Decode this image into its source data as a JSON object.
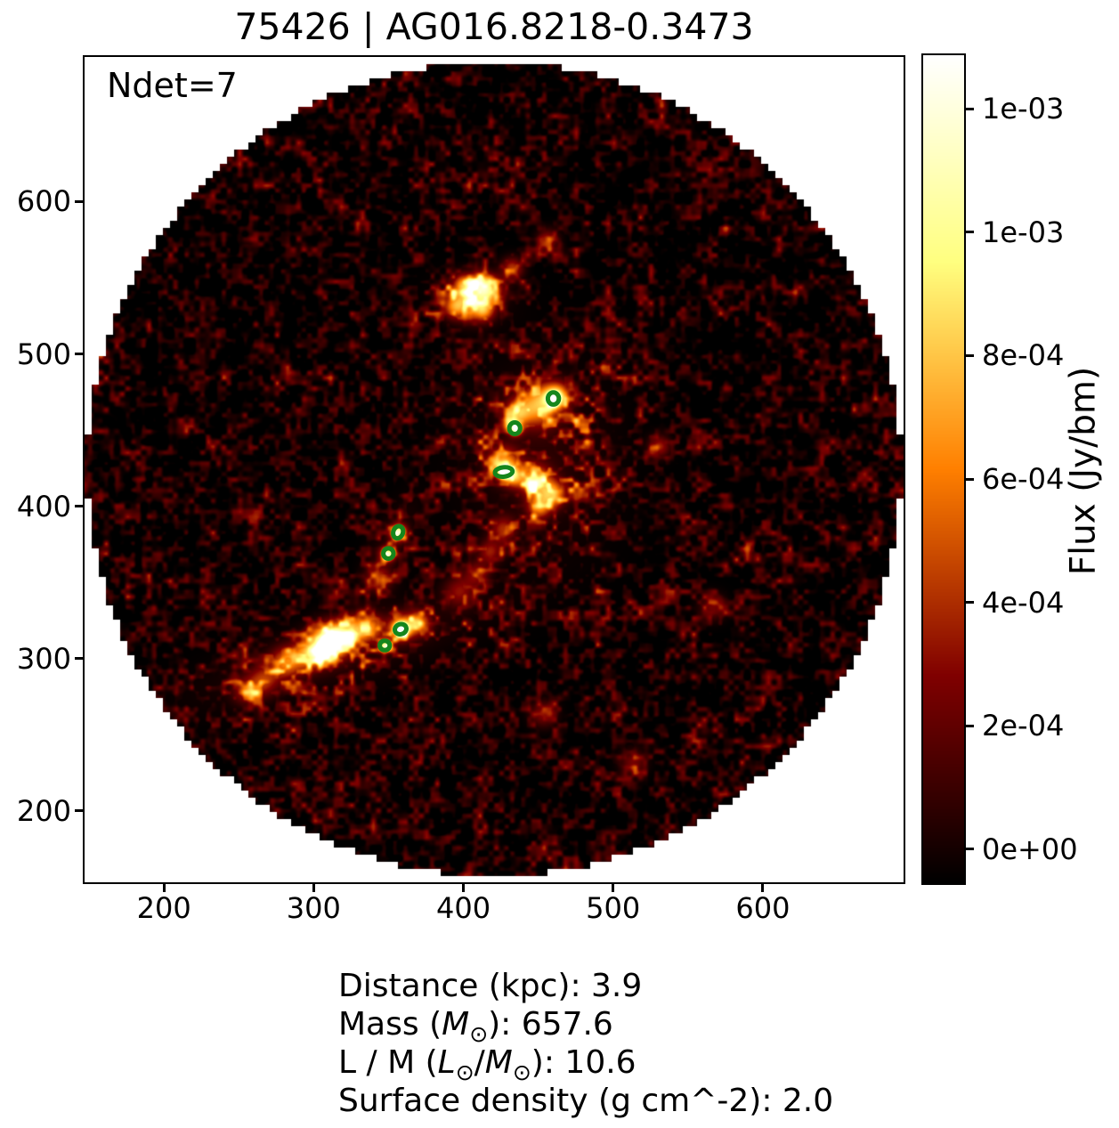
{
  "figure": {
    "title": "75426 | AG016.8218-0.3473",
    "ndet_label": "Ndet=7",
    "info_lines": [
      [
        {
          "t": "Distance (kpc): 3.9"
        }
      ],
      [
        {
          "t": "Mass ("
        },
        {
          "t": "M",
          "i": true
        },
        {
          "t": "⊙",
          "sub": true
        },
        {
          "t": "): 657.6"
        }
      ],
      [
        {
          "t": "L / M ("
        },
        {
          "t": "L",
          "i": true
        },
        {
          "t": "⊙",
          "sub": true
        },
        {
          "t": "/"
        },
        {
          "t": "M",
          "i": true
        },
        {
          "t": "⊙",
          "sub": true
        },
        {
          "t": "): 10.6"
        }
      ],
      [
        {
          "t": "Surface density (g cm^-2): 2.0"
        }
      ]
    ]
  },
  "chart_data": {
    "type": "heatmap",
    "title": "75426 | AG016.8218-0.3473",
    "n_detections": 7,
    "xlim": [
      147,
      694
    ],
    "ylim": [
      153,
      695
    ],
    "x_ticks": [
      200,
      300,
      400,
      500,
      600
    ],
    "y_ticks": [
      200,
      300,
      400,
      500,
      600
    ],
    "grid": false,
    "colormap": "afmhot",
    "colorbar": {
      "label": "Flux (Jy/bm)",
      "vmin": -5.5e-05,
      "vmax": 0.001287,
      "tick_values": [
        0.0012,
        0.001,
        0.0008,
        0.0006,
        0.0004,
        0.0002,
        0.0
      ],
      "tick_labels": [
        "1e-03",
        "1e-03",
        "8e-04",
        "6e-04",
        "4e-04",
        "2e-04",
        "0e+00"
      ]
    },
    "field": {
      "shape": "circle",
      "center": [
        420.5,
        424.5
      ],
      "radius": 272,
      "outside_color": "#ffffff"
    },
    "marker_color": "#15861c",
    "detections": [
      {
        "x": 460.1,
        "y": 470.7,
        "a": 3.7,
        "b": 4.0,
        "angle": 0
      },
      {
        "x": 434.3,
        "y": 451.2,
        "a": 3.6,
        "b": 3.8,
        "angle": 0
      },
      {
        "x": 427.0,
        "y": 422.5,
        "a": 5.9,
        "b": 3.1,
        "angle": -6
      },
      {
        "x": 356.4,
        "y": 382.9,
        "a": 3.2,
        "b": 4.1,
        "angle": 20
      },
      {
        "x": 349.9,
        "y": 368.9,
        "a": 3.4,
        "b": 3.4,
        "angle": 0
      },
      {
        "x": 358.1,
        "y": 319.2,
        "a": 3.9,
        "b": 3.3,
        "angle": -20
      },
      {
        "x": 347.5,
        "y": 308.5,
        "a": 3.3,
        "b": 3.1,
        "angle": 0
      }
    ],
    "bright_features": {
      "glows": [
        [
          318,
          305,
          65,
          15,
          -17,
          0.5
        ],
        [
          450,
          432,
          33,
          42,
          0,
          0.45
        ],
        [
          406,
          536,
          18,
          12,
          0,
          0.4
        ],
        [
          352,
          376,
          9,
          21,
          24,
          0.45
        ]
      ],
      "clumps": [
        [
          406,
          536,
          8.3,
          0.5
        ],
        [
          417.5,
          541.8,
          6,
          0.45
        ],
        [
          393.8,
          531.3,
          5.3,
          0.4
        ],
        [
          413.4,
          528.4,
          4.8,
          0.35
        ],
        [
          399.7,
          545.9,
          4.8,
          0.4
        ],
        [
          412,
          547,
          5,
          0.4
        ],
        [
          432.4,
          556.4,
          5,
          0.35
        ],
        [
          450.2,
          467,
          9.5,
          0.55
        ],
        [
          462.2,
          472.8,
          6,
          0.55
        ],
        [
          435.4,
          461.1,
          6,
          0.45
        ],
        [
          460.1,
          470.7,
          3,
          0.85
        ],
        [
          434.3,
          451.2,
          3,
          0.85
        ],
        [
          426.5,
          429,
          7,
          0.5
        ],
        [
          427,
          422.5,
          3,
          0.8
        ],
        [
          447.3,
          417.3,
          7,
          0.55
        ],
        [
          459.2,
          408.5,
          6,
          0.5
        ],
        [
          450.2,
          399.7,
          5.4,
          0.45
        ],
        [
          432.4,
          420.2,
          4.8,
          0.5
        ],
        [
          426.5,
          385.1,
          6,
          0.3
        ],
        [
          417.5,
          370.4,
          5.4,
          0.28
        ],
        [
          356.4,
          382.9,
          3.6,
          0.85
        ],
        [
          349.9,
          368.9,
          3,
          0.8
        ],
        [
          343.2,
          352.9,
          6,
          0.3
        ],
        [
          280.8,
          297.4,
          7,
          0.4
        ],
        [
          295.7,
          303.2,
          7,
          0.45
        ],
        [
          310.5,
          312,
          8.3,
          0.5
        ],
        [
          313.5,
          312,
          6,
          0.7
        ],
        [
          304.6,
          304.4,
          4.8,
          0.65
        ],
        [
          325.4,
          317.9,
          7,
          0.45
        ],
        [
          337.3,
          320.8,
          6,
          0.4
        ],
        [
          358.1,
          320.8,
          6,
          0.45
        ],
        [
          370,
          323.7,
          5.4,
          0.45
        ],
        [
          358.1,
          319.2,
          3.6,
          0.8
        ],
        [
          347.5,
          308.5,
          3,
          0.75
        ],
        [
          265.9,
          285.7,
          7,
          0.3
        ],
        [
          254,
          278.7,
          6,
          0.25
        ],
        [
          396.8,
          344.1,
          7,
          0.25
        ],
        [
          408.7,
          355.8,
          6,
          0.25
        ],
        [
          530.6,
          439.5,
          5,
          0.3
        ],
        [
          456.2,
          575.1,
          5,
          0.28
        ],
        [
          453.2,
          264,
          6,
          0.25
        ],
        [
          566,
          334,
          6,
          0.22
        ],
        [
          513,
          232,
          6,
          0.22
        ]
      ]
    }
  }
}
